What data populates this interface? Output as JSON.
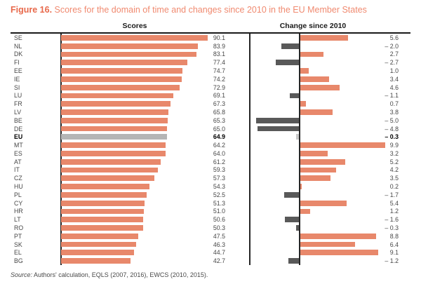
{
  "title": {
    "prefix": "Figure 16.",
    "rest": " Scores for the domain of time and changes since 2010 in the EU Member States"
  },
  "headers": {
    "scores": "Scores",
    "change": "Change since 2010"
  },
  "source": {
    "label": "Source:",
    "text": " Authors' calculation, EQLS (2007, 2016), EWCS (2010, 2015)."
  },
  "colors": {
    "bar_positive": "#e8886b",
    "bar_negative": "#595959",
    "eu_score_bar": "#b5b5b5",
    "eu_change_bar": "#c8c8c8",
    "title_accent": "#e8694b",
    "title_text": "#f08a70",
    "rule": "#1a1a1a"
  },
  "chart_data": {
    "type": "bar",
    "orientation": "horizontal",
    "title": "Scores for the domain of time and changes since 2010 in the EU Member States",
    "panels": [
      "Scores",
      "Change since 2010"
    ],
    "categories": [
      "SE",
      "NL",
      "DK",
      "FI",
      "EE",
      "IE",
      "SI",
      "LU",
      "FR",
      "LV",
      "BE",
      "DE",
      "EU",
      "MT",
      "ES",
      "AT",
      "IT",
      "CZ",
      "HU",
      "PL",
      "CY",
      "HR",
      "LT",
      "RO",
      "PT",
      "SK",
      "EL",
      "BG"
    ],
    "series": [
      {
        "name": "Scores",
        "values": [
          90.1,
          83.9,
          83.1,
          77.4,
          74.7,
          74.2,
          72.9,
          69.1,
          67.3,
          65.8,
          65.3,
          65.0,
          64.9,
          64.2,
          64.0,
          61.2,
          59.3,
          57.3,
          54.3,
          52.5,
          51.3,
          51.0,
          50.6,
          50.3,
          47.5,
          46.3,
          44.7,
          42.7
        ]
      },
      {
        "name": "Change since 2010",
        "values": [
          5.6,
          -2.0,
          2.7,
          -2.7,
          1.0,
          3.4,
          4.6,
          -1.1,
          0.7,
          3.8,
          -5.0,
          -4.8,
          -0.3,
          9.9,
          3.2,
          5.2,
          4.2,
          3.5,
          0.2,
          -1.7,
          5.4,
          1.2,
          -1.6,
          -0.3,
          8.8,
          6.4,
          9.1,
          -1.2
        ]
      }
    ],
    "highlight_category": "EU",
    "scores_axis": {
      "min": 0,
      "implied_max": 95,
      "grid": false
    },
    "change_axis": {
      "zero_line": true,
      "min": -5.0,
      "max": 9.9
    },
    "legend": "none",
    "value_labels": "right-aligned numeric labels per bar in both panels"
  }
}
